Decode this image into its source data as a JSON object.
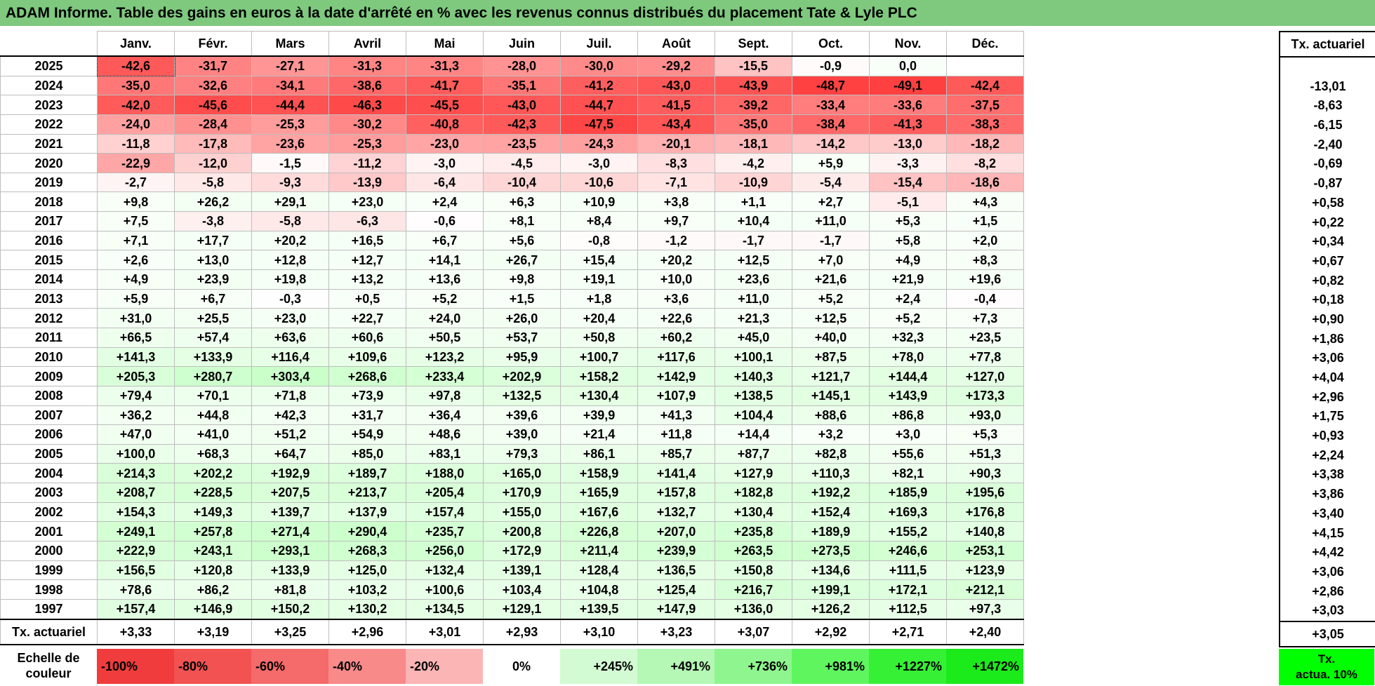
{
  "title": "ADAM Informe. Table des gains en euros à la date d'arrêté en % avec les revenus connus distribués du placement Tate & Lyle PLC",
  "months": [
    "Janv.",
    "Févr.",
    "Mars",
    "Avril",
    "Mai",
    "Juin",
    "Juil.",
    "Août",
    "Sept.",
    "Oct.",
    "Nov.",
    "Déc."
  ],
  "side_header": "Tx. actuariel",
  "rows": [
    {
      "year": "2025",
      "values": [
        "-42,6",
        "-31,7",
        "-27,1",
        "-31,3",
        "-31,3",
        "-28,0",
        "-30,0",
        "-29,2",
        "-15,5",
        "-0,9",
        "0,0",
        ""
      ],
      "rate": ""
    },
    {
      "year": "2024",
      "values": [
        "-35,0",
        "-32,6",
        "-34,1",
        "-38,6",
        "-41,7",
        "-35,1",
        "-41,2",
        "-43,0",
        "-43,9",
        "-48,7",
        "-49,1",
        "-42,4"
      ],
      "rate": "-13,01"
    },
    {
      "year": "2023",
      "values": [
        "-42,0",
        "-45,6",
        "-44,4",
        "-46,3",
        "-45,5",
        "-43,0",
        "-44,7",
        "-41,5",
        "-39,2",
        "-33,4",
        "-33,6",
        "-37,5"
      ],
      "rate": "-8,63"
    },
    {
      "year": "2022",
      "values": [
        "-24,0",
        "-28,4",
        "-25,3",
        "-30,2",
        "-40,8",
        "-42,3",
        "-47,5",
        "-43,4",
        "-35,0",
        "-38,4",
        "-41,3",
        "-38,3"
      ],
      "rate": "-6,15"
    },
    {
      "year": "2021",
      "values": [
        "-11,8",
        "-17,8",
        "-23,6",
        "-25,3",
        "-23,0",
        "-23,5",
        "-24,3",
        "-20,1",
        "-18,1",
        "-14,2",
        "-13,0",
        "-18,2"
      ],
      "rate": "-2,40"
    },
    {
      "year": "2020",
      "values": [
        "-22,9",
        "-12,0",
        "-1,5",
        "-11,2",
        "-3,0",
        "-4,5",
        "-3,0",
        "-8,3",
        "-4,2",
        "+5,9",
        "-3,3",
        "-8,2"
      ],
      "rate": "-0,69"
    },
    {
      "year": "2019",
      "values": [
        "-2,7",
        "-5,8",
        "-9,3",
        "-13,9",
        "-6,4",
        "-10,4",
        "-10,6",
        "-7,1",
        "-10,9",
        "-5,4",
        "-15,4",
        "-18,6"
      ],
      "rate": "-0,87"
    },
    {
      "year": "2018",
      "values": [
        "+9,8",
        "+26,2",
        "+29,1",
        "+23,0",
        "+2,4",
        "+6,3",
        "+10,9",
        "+3,8",
        "+1,1",
        "+2,7",
        "-5,1",
        "+4,3"
      ],
      "rate": "+0,58"
    },
    {
      "year": "2017",
      "values": [
        "+7,5",
        "-3,8",
        "-5,8",
        "-6,3",
        "-0,6",
        "+8,1",
        "+8,4",
        "+9,7",
        "+10,4",
        "+11,0",
        "+5,3",
        "+1,5"
      ],
      "rate": "+0,22"
    },
    {
      "year": "2016",
      "values": [
        "+7,1",
        "+17,7",
        "+20,2",
        "+16,5",
        "+6,7",
        "+5,6",
        "-0,8",
        "-1,2",
        "-1,7",
        "-1,7",
        "+5,8",
        "+2,0"
      ],
      "rate": "+0,34"
    },
    {
      "year": "2015",
      "values": [
        "+2,6",
        "+13,0",
        "+12,8",
        "+12,7",
        "+14,1",
        "+26,7",
        "+15,4",
        "+20,2",
        "+12,5",
        "+7,0",
        "+4,9",
        "+8,3"
      ],
      "rate": "+0,67"
    },
    {
      "year": "2014",
      "values": [
        "+4,9",
        "+23,9",
        "+19,8",
        "+13,2",
        "+13,6",
        "+9,8",
        "+19,1",
        "+10,0",
        "+23,6",
        "+21,6",
        "+21,9",
        "+19,6"
      ],
      "rate": "+0,82"
    },
    {
      "year": "2013",
      "values": [
        "+5,9",
        "+6,7",
        "-0,3",
        "+0,5",
        "+5,2",
        "+1,5",
        "+1,8",
        "+3,6",
        "+11,0",
        "+5,2",
        "+2,4",
        "-0,4"
      ],
      "rate": "+0,18"
    },
    {
      "year": "2012",
      "values": [
        "+31,0",
        "+25,5",
        "+23,0",
        "+22,7",
        "+24,0",
        "+26,0",
        "+20,4",
        "+22,6",
        "+21,3",
        "+12,5",
        "+5,2",
        "+7,3"
      ],
      "rate": "+0,90"
    },
    {
      "year": "2011",
      "values": [
        "+66,5",
        "+57,4",
        "+63,6",
        "+60,6",
        "+50,5",
        "+53,7",
        "+50,8",
        "+60,2",
        "+45,0",
        "+40,0",
        "+32,3",
        "+23,5"
      ],
      "rate": "+1,86"
    },
    {
      "year": "2010",
      "values": [
        "+141,3",
        "+133,9",
        "+116,4",
        "+109,6",
        "+123,2",
        "+95,9",
        "+100,7",
        "+117,6",
        "+100,1",
        "+87,5",
        "+78,0",
        "+77,8"
      ],
      "rate": "+3,06"
    },
    {
      "year": "2009",
      "values": [
        "+205,3",
        "+280,7",
        "+303,4",
        "+268,6",
        "+233,4",
        "+202,9",
        "+158,2",
        "+142,9",
        "+140,3",
        "+121,7",
        "+144,4",
        "+127,0"
      ],
      "rate": "+4,04"
    },
    {
      "year": "2008",
      "values": [
        "+79,4",
        "+70,1",
        "+71,8",
        "+73,9",
        "+97,8",
        "+132,5",
        "+130,4",
        "+107,9",
        "+138,5",
        "+145,1",
        "+143,9",
        "+173,3"
      ],
      "rate": "+2,96"
    },
    {
      "year": "2007",
      "values": [
        "+36,2",
        "+44,8",
        "+42,3",
        "+31,7",
        "+36,4",
        "+39,6",
        "+39,9",
        "+41,3",
        "+104,4",
        "+88,6",
        "+86,8",
        "+93,0"
      ],
      "rate": "+1,75"
    },
    {
      "year": "2006",
      "values": [
        "+47,0",
        "+41,0",
        "+51,2",
        "+54,9",
        "+48,6",
        "+39,0",
        "+21,4",
        "+11,8",
        "+14,4",
        "+3,2",
        "+3,0",
        "+5,3"
      ],
      "rate": "+0,93"
    },
    {
      "year": "2005",
      "values": [
        "+100,0",
        "+68,3",
        "+64,7",
        "+85,0",
        "+83,1",
        "+79,3",
        "+86,1",
        "+85,7",
        "+87,7",
        "+82,8",
        "+55,6",
        "+51,3"
      ],
      "rate": "+2,24"
    },
    {
      "year": "2004",
      "values": [
        "+214,3",
        "+202,2",
        "+192,9",
        "+189,7",
        "+188,0",
        "+165,0",
        "+158,9",
        "+141,4",
        "+127,9",
        "+110,3",
        "+82,1",
        "+90,3"
      ],
      "rate": "+3,38"
    },
    {
      "year": "2003",
      "values": [
        "+208,7",
        "+228,5",
        "+207,5",
        "+213,7",
        "+205,4",
        "+170,9",
        "+165,9",
        "+157,8",
        "+182,8",
        "+192,2",
        "+185,9",
        "+195,6"
      ],
      "rate": "+3,86"
    },
    {
      "year": "2002",
      "values": [
        "+154,3",
        "+149,3",
        "+139,7",
        "+137,9",
        "+157,4",
        "+155,0",
        "+167,6",
        "+132,7",
        "+130,4",
        "+152,4",
        "+169,3",
        "+176,8"
      ],
      "rate": "+3,40"
    },
    {
      "year": "2001",
      "values": [
        "+249,1",
        "+257,8",
        "+271,4",
        "+290,4",
        "+235,7",
        "+200,8",
        "+226,8",
        "+207,0",
        "+235,8",
        "+189,9",
        "+155,2",
        "+140,8"
      ],
      "rate": "+4,15"
    },
    {
      "year": "2000",
      "values": [
        "+222,9",
        "+243,1",
        "+293,1",
        "+268,3",
        "+256,0",
        "+172,9",
        "+211,4",
        "+239,9",
        "+263,5",
        "+273,5",
        "+246,6",
        "+253,1"
      ],
      "rate": "+4,42"
    },
    {
      "year": "1999",
      "values": [
        "+156,5",
        "+120,8",
        "+133,9",
        "+125,0",
        "+132,4",
        "+139,1",
        "+128,4",
        "+136,5",
        "+150,8",
        "+134,6",
        "+111,5",
        "+123,9"
      ],
      "rate": "+3,06"
    },
    {
      "year": "1998",
      "values": [
        "+78,6",
        "+86,2",
        "+81,8",
        "+103,2",
        "+100,6",
        "+103,4",
        "+104,8",
        "+125,4",
        "+216,7",
        "+199,1",
        "+172,1",
        "+212,1"
      ],
      "rate": "+2,86"
    },
    {
      "year": "1997",
      "values": [
        "+157,4",
        "+146,9",
        "+150,2",
        "+130,2",
        "+134,5",
        "+129,1",
        "+139,5",
        "+147,9",
        "+136,0",
        "+126,2",
        "+112,5",
        "+97,3"
      ],
      "rate": "+3,03"
    }
  ],
  "actuarial_row": {
    "label": "Tx. actuariel",
    "values": [
      "+3,33",
      "+3,19",
      "+3,25",
      "+2,96",
      "+3,01",
      "+2,93",
      "+3,10",
      "+3,23",
      "+3,07",
      "+2,92",
      "+2,71",
      "+2,40"
    ],
    "overall": "+3,05"
  },
  "legend": {
    "label_line1": "Echelle de",
    "label_line2": "couleur",
    "items": [
      {
        "text": "-100%",
        "color": "#f03c3c"
      },
      {
        "text": "-80%",
        "color": "#f25252"
      },
      {
        "text": "-60%",
        "color": "#f56a6a"
      },
      {
        "text": "-40%",
        "color": "#f88a8a"
      },
      {
        "text": "-20%",
        "color": "#fbb5b5"
      },
      {
        "text": "0%",
        "color": "#ffffff"
      },
      {
        "text": "+245%",
        "color": "#d3fbd3"
      },
      {
        "text": "+491%",
        "color": "#b5f7b5"
      },
      {
        "text": "+736%",
        "color": "#8ff58f"
      },
      {
        "text": "+981%",
        "color": "#5ff55f"
      },
      {
        "text": "+1227%",
        "color": "#36f036"
      },
      {
        "text": "+1472%",
        "color": "#1bea1b"
      }
    ],
    "actual_line1": "Tx.",
    "actual_line2": "actua. 10%",
    "actual_color": "#00ff00"
  }
}
